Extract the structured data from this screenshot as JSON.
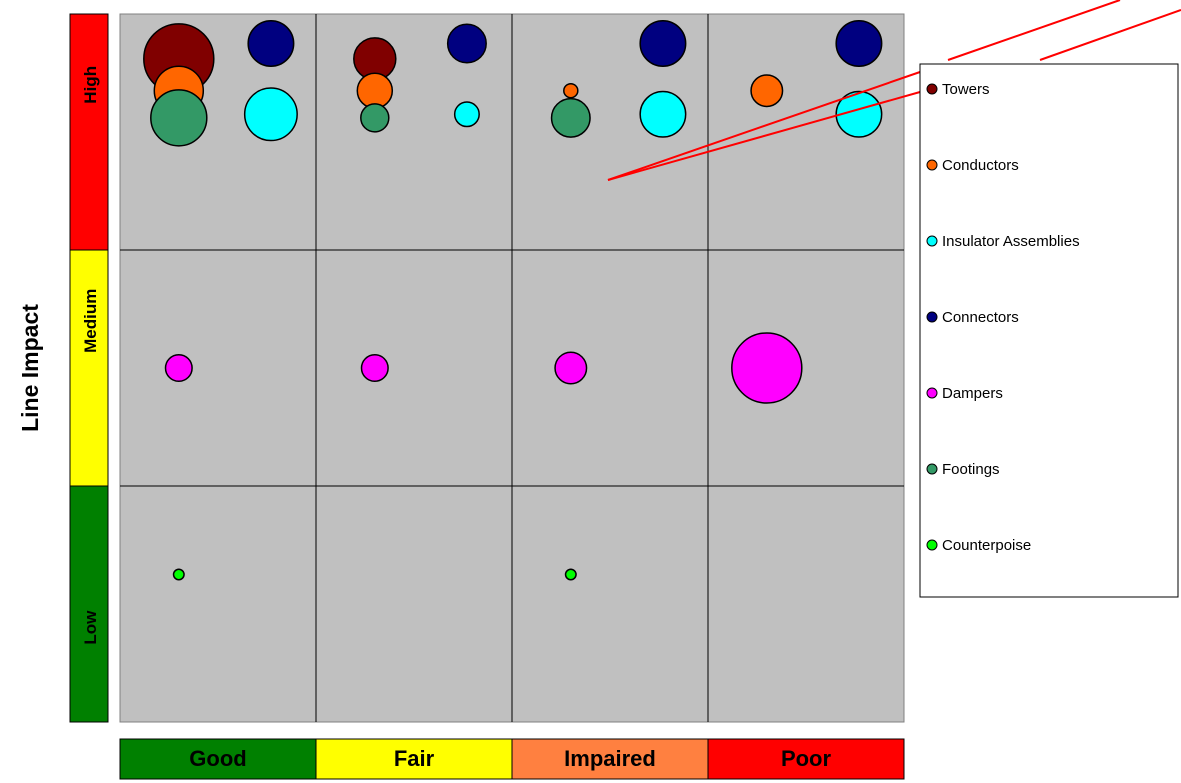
{
  "chart_data": {
    "type": "bubble",
    "ylabel": "Line Impact",
    "columns": [
      {
        "label": "Good",
        "color": "#008000"
      },
      {
        "label": "Fair",
        "color": "#ffff00"
      },
      {
        "label": "Impaired",
        "color": "#ff8040"
      },
      {
        "label": "Poor",
        "color": "#ff0000"
      }
    ],
    "rows": [
      {
        "label": "High",
        "color": "#ff0000"
      },
      {
        "label": "Medium",
        "color": "#ffff00"
      },
      {
        "label": "Low",
        "color": "#008000"
      }
    ],
    "series": [
      {
        "name": "Towers",
        "color": "#800000",
        "points": [
          {
            "column": "Good",
            "row": "High",
            "size": 1.0
          },
          {
            "column": "Fair",
            "row": "High",
            "size": 0.6
          }
        ]
      },
      {
        "name": "Conductors",
        "color": "#ff6600",
        "points": [
          {
            "column": "Good",
            "row": "High",
            "size": 0.7
          },
          {
            "column": "Fair",
            "row": "High",
            "size": 0.5
          },
          {
            "column": "Impaired",
            "row": "High",
            "size": 0.2
          },
          {
            "column": "Poor",
            "row": "High",
            "size": 0.45
          }
        ]
      },
      {
        "name": "Insulator Assemblies",
        "color": "#00ffff",
        "points": [
          {
            "column": "Good",
            "row": "High",
            "size": 0.75
          },
          {
            "column": "Fair",
            "row": "High",
            "size": 0.35
          },
          {
            "column": "Impaired",
            "row": "High",
            "size": 0.65
          },
          {
            "column": "Poor",
            "row": "High",
            "size": 0.65
          }
        ]
      },
      {
        "name": "Connectors",
        "color": "#000080",
        "points": [
          {
            "column": "Good",
            "row": "High",
            "size": 0.65
          },
          {
            "column": "Fair",
            "row": "High",
            "size": 0.55
          },
          {
            "column": "Impaired",
            "row": "High",
            "size": 0.65
          },
          {
            "column": "Poor",
            "row": "High",
            "size": 0.65
          }
        ]
      },
      {
        "name": "Dampers",
        "color": "#ff00ff",
        "points": [
          {
            "column": "Good",
            "row": "Medium",
            "size": 0.38
          },
          {
            "column": "Fair",
            "row": "Medium",
            "size": 0.38
          },
          {
            "column": "Impaired",
            "row": "Medium",
            "size": 0.45
          },
          {
            "column": "Poor",
            "row": "Medium",
            "size": 1.0
          }
        ]
      },
      {
        "name": "Footings",
        "color": "#339966",
        "points": [
          {
            "column": "Good",
            "row": "High",
            "size": 0.8
          },
          {
            "column": "Fair",
            "row": "High",
            "size": 0.4
          },
          {
            "column": "Impaired",
            "row": "High",
            "size": 0.55
          }
        ]
      },
      {
        "name": "Counterpoise",
        "color": "#00ff00",
        "points": [
          {
            "column": "Good",
            "row": "Low",
            "size": 0.15
          },
          {
            "column": "Impaired",
            "row": "Low",
            "size": 0.15
          }
        ]
      }
    ],
    "legend_position": "right",
    "grid": true
  }
}
